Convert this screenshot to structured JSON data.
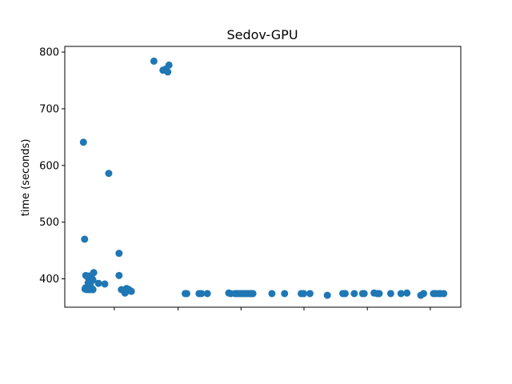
{
  "chart_data": {
    "type": "scatter",
    "title": "Sedov-GPU",
    "xlabel": "",
    "ylabel": "time (seconds)",
    "xlim": [
      0,
      100
    ],
    "ylim": [
      350,
      810
    ],
    "x_tick_values": [
      12.5,
      28.6,
      44.5,
      60.4,
      76.4,
      92.3
    ],
    "x_tick_labels": [],
    "y_ticks": [
      400,
      500,
      600,
      700,
      800
    ],
    "grid": false,
    "color": "#1f77b4",
    "series": [
      {
        "x": [
          4.7,
          5.0,
          5.2,
          5.1,
          5.6,
          6.0,
          6.3,
          6.6,
          6.8,
          7.0,
          7.1,
          5.3,
          5.8,
          6.2,
          6.5,
          6.9,
          7.1,
          5.9,
          6.4,
          7.3,
          8.5,
          10.1,
          11.1,
          13.7,
          15.6,
          13.7,
          14.3,
          15.2,
          15.9,
          16.2,
          16.8,
          22.5,
          24.8,
          25.5,
          26.0,
          26.3,
          30.4,
          30.8,
          33.9,
          34.5,
          36.0,
          41.4,
          41.9,
          43.0,
          43.5,
          44.0,
          44.5,
          45.0,
          45.5,
          46.0,
          46.5,
          47.0,
          47.5,
          47.0,
          52.3,
          55.5,
          59.7,
          60.3,
          61.9,
          66.3,
          70.2,
          70.8,
          73.1,
          75.2,
          75.6,
          78.1,
          78.9,
          79.4,
          82.3,
          84.9,
          86.4,
          89.9,
          90.6,
          93.1,
          93.6,
          94.4,
          94.9,
          95.7
        ],
        "y": [
          641,
          470,
          384,
          382,
          381,
          382,
          381,
          383,
          383,
          382,
          381,
          406,
          403,
          405,
          402,
          400,
          398,
          393,
          390,
          411,
          392,
          391,
          586,
          445,
          383,
          406,
          381,
          375,
          379,
          381,
          378,
          784,
          768,
          770,
          765,
          777,
          374,
          374,
          374,
          374,
          374,
          375,
          374,
          374,
          374,
          374,
          374,
          374,
          374,
          374,
          374,
          374,
          374,
          374,
          374,
          374,
          374,
          374,
          374,
          371,
          374,
          374,
          374,
          374,
          374,
          375,
          374,
          374,
          374,
          374,
          375,
          371,
          374,
          374,
          374,
          374,
          374,
          374
        ]
      }
    ]
  }
}
